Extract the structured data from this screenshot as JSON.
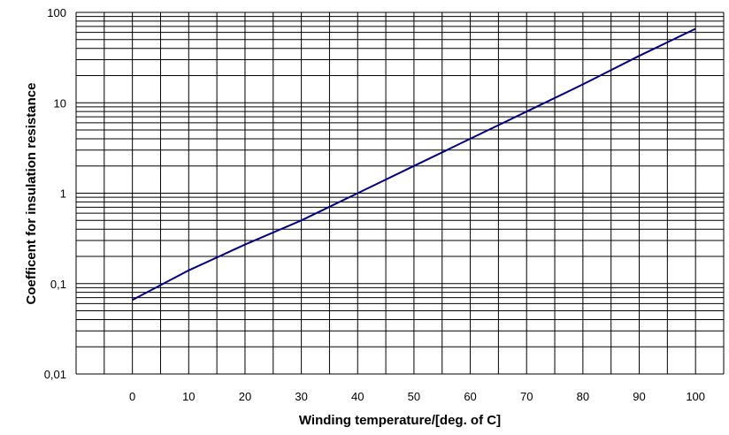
{
  "chart_data": {
    "type": "line",
    "title": "",
    "xlabel": "Winding temperature/[deg. of C]",
    "ylabel": "Coefficent for insulation resistance",
    "x_ticks": [
      "0",
      "10",
      "20",
      "30",
      "40",
      "50",
      "60",
      "70",
      "80",
      "90",
      "100"
    ],
    "y_ticks": [
      "0,01",
      "0,1",
      "1",
      "10",
      "100"
    ],
    "xlim": [
      -10,
      105
    ],
    "ylim": [
      0.01,
      100
    ],
    "y_scale": "log",
    "grid": true,
    "legend": "none",
    "line_color": "#000080",
    "series": [
      {
        "x": [
          0,
          10,
          20,
          30,
          40,
          50,
          60,
          70,
          80,
          90,
          100
        ],
        "y": [
          0.066,
          0.14,
          0.27,
          0.5,
          1.0,
          2.0,
          4.0,
          8.0,
          16.0,
          33.0,
          66.0
        ]
      }
    ]
  }
}
